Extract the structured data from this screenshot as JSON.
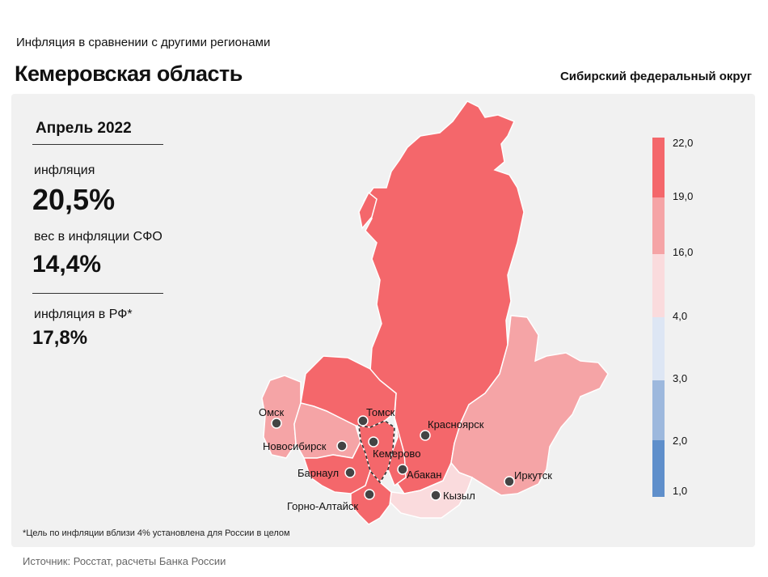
{
  "header": {
    "subtitle": "Инфляция  в сравнении  с другими  регионами",
    "region": "Кемеровская область",
    "district": "Сибирский федеральный округ"
  },
  "stats": {
    "period": "Апрель 2022",
    "inflation_label": "инфляция",
    "inflation_value": "20,5%",
    "weight_label": "вес в инфляции  СФО",
    "weight_value": "14,4%",
    "rf_label": "инфляция  в РФ*",
    "rf_value": "17,8%"
  },
  "legend": {
    "ticks": [
      "22,0",
      "19,0",
      "16,0",
      "4,0",
      "3,0",
      "2,0",
      "1,0"
    ],
    "colors": [
      "#f4676b",
      "#f5a4a6",
      "#fadbdd",
      "#dde6f4",
      "#9db8dd",
      "#5f8fcb"
    ]
  },
  "cities": [
    {
      "name": "Омск"
    },
    {
      "name": "Томск"
    },
    {
      "name": "Новосибирск"
    },
    {
      "name": "Кемерово"
    },
    {
      "name": "Красноярск"
    },
    {
      "name": "Барнаул"
    },
    {
      "name": "Абакан"
    },
    {
      "name": "Горно-Алтайск"
    },
    {
      "name": "Кызыл"
    },
    {
      "name": "Иркутск"
    }
  ],
  "region_colors": {
    "high": "#f4676b",
    "mid": "#f5a4a6",
    "low": "#fadbdd"
  },
  "footnote": "*Цель по инфляции вблизи 4% установлена для России в целом",
  "source": "Источник: Росстат, расчеты Банка России"
}
